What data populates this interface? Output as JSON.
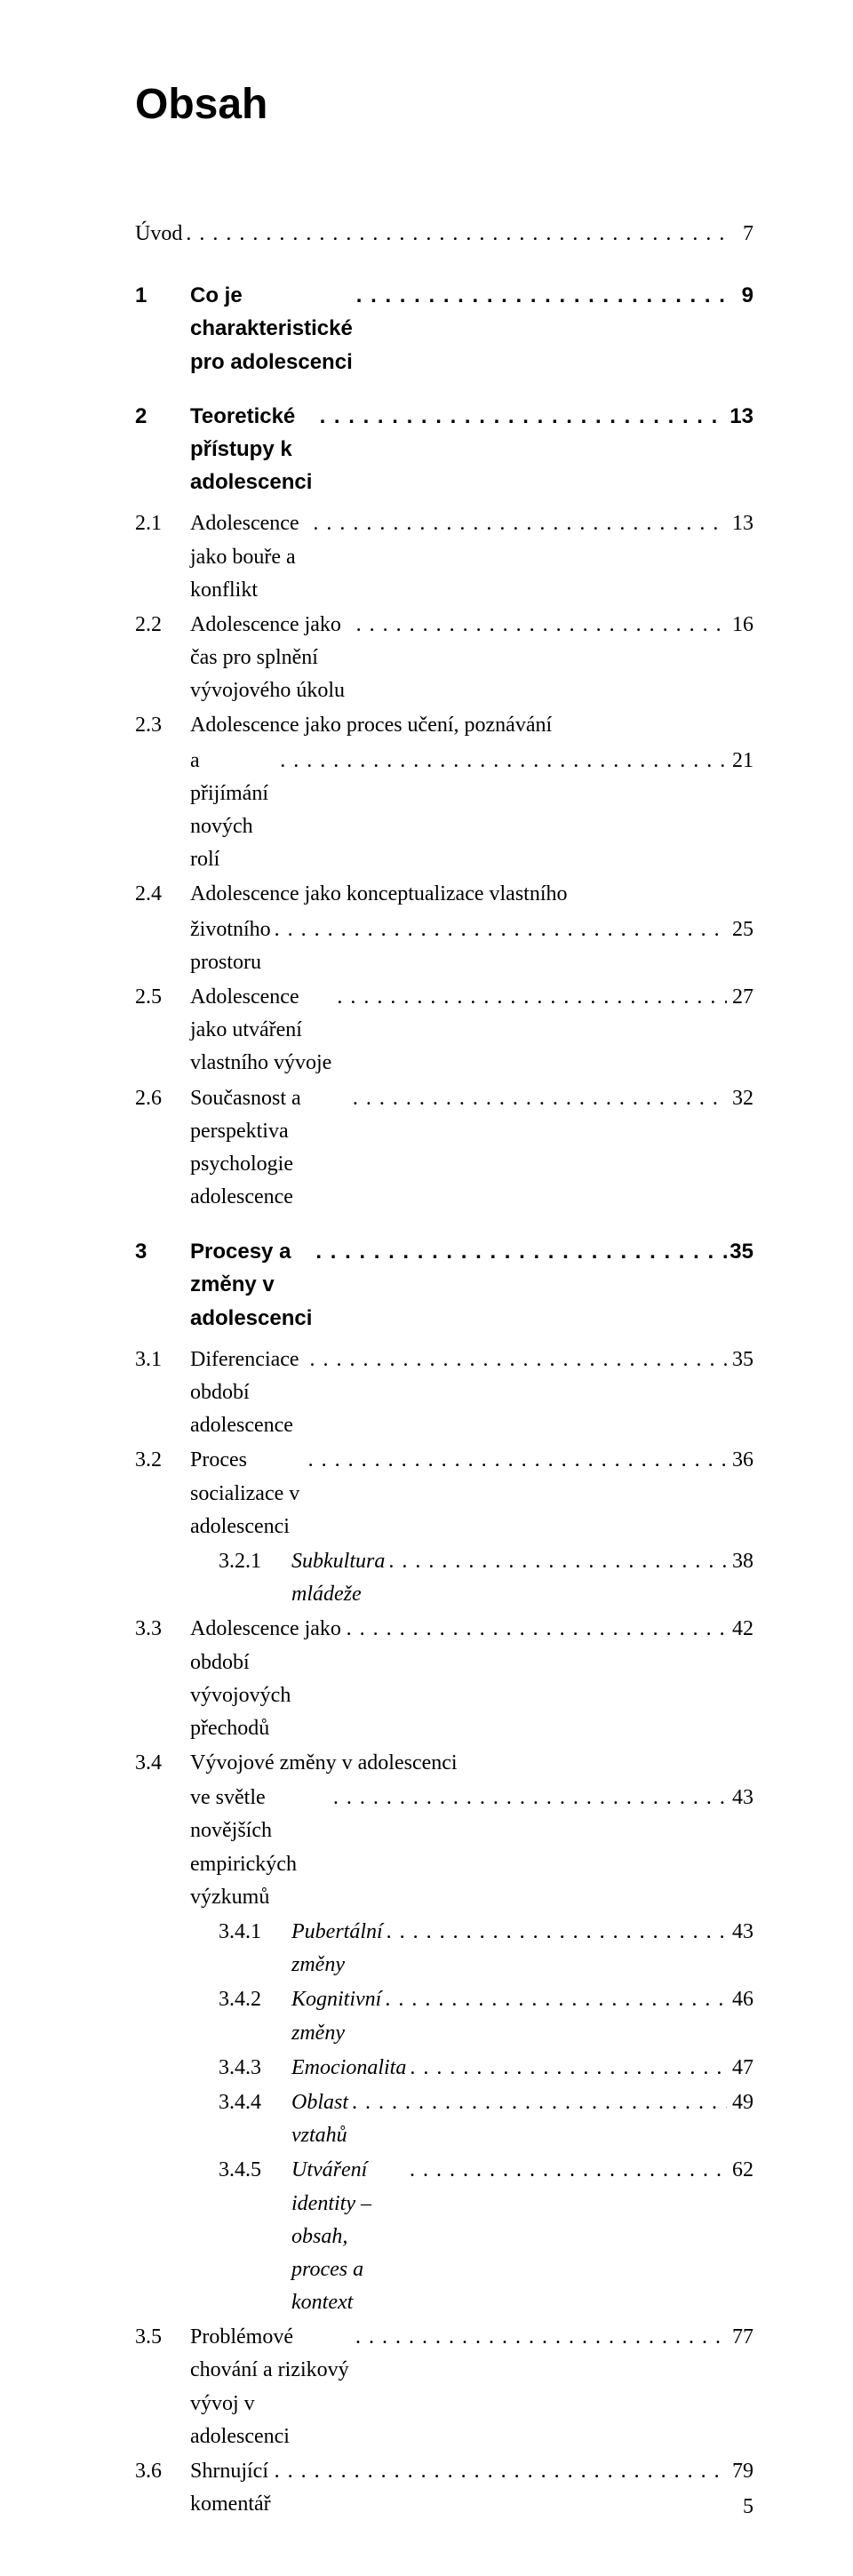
{
  "title": "Obsah",
  "footer_page": "5",
  "entries": [
    {
      "kind": "plain",
      "num": "",
      "label": "Úvod",
      "page": "7"
    },
    {
      "kind": "gap-l"
    },
    {
      "kind": "chapter",
      "num": "1",
      "label": "Co je charakteristické pro adolescenci",
      "page": "9"
    },
    {
      "kind": "gap-m"
    },
    {
      "kind": "chapter",
      "num": "2",
      "label": "Teoretické přístupy k adolescenci",
      "page": "13"
    },
    {
      "kind": "gap-s"
    },
    {
      "kind": "sub",
      "num": "2.1",
      "label": "Adolescence jako bouře a konflikt",
      "page": "13"
    },
    {
      "kind": "sub",
      "num": "2.2",
      "label": "Adolescence jako čas pro splnění vývojového úkolu",
      "page": "16"
    },
    {
      "kind": "sub-wrap",
      "num": "2.3",
      "label1": "Adolescence jako proces učení, poznávání",
      "label2": "a přijímání nových rolí",
      "page": "21"
    },
    {
      "kind": "sub-wrap",
      "num": "2.4",
      "label1": "Adolescence jako konceptualizace vlastního",
      "label2": "životního prostoru",
      "page": "25"
    },
    {
      "kind": "sub",
      "num": "2.5",
      "label": "Adolescence jako utváření vlastního vývoje",
      "page": "27"
    },
    {
      "kind": "sub",
      "num": "2.6",
      "label": "Současnost a perspektiva psychologie adolescence",
      "page": "32"
    },
    {
      "kind": "gap-m"
    },
    {
      "kind": "chapter",
      "num": "3",
      "label": "Procesy a změny v adolescenci",
      "page": "35"
    },
    {
      "kind": "gap-s"
    },
    {
      "kind": "sub",
      "num": "3.1",
      "label": "Diferenciace období adolescence",
      "page": "35"
    },
    {
      "kind": "sub",
      "num": "3.2",
      "label": "Proces socializace v adolescenci",
      "page": "36"
    },
    {
      "kind": "sub2",
      "num": "3.2.1",
      "label": "Subkultura mládeže",
      "italic": true,
      "page": "38"
    },
    {
      "kind": "sub",
      "num": "3.3",
      "label": "Adolescence jako období vývojových přechodů",
      "page": "42"
    },
    {
      "kind": "sub-wrap",
      "num": "3.4",
      "label1": "Vývojové změny v adolescenci",
      "label2": "ve světle novějších empirických výzkumů",
      "page": "43"
    },
    {
      "kind": "sub2",
      "num": "3.4.1",
      "label": "Pubertální změny",
      "italic": true,
      "page": "43"
    },
    {
      "kind": "sub2",
      "num": "3.4.2",
      "label": "Kognitivní změny",
      "italic": true,
      "page": "46"
    },
    {
      "kind": "sub2",
      "num": "3.4.3",
      "label": "Emocionalita",
      "italic": true,
      "page": "47"
    },
    {
      "kind": "sub2",
      "num": "3.4.4",
      "label": "Oblast vztahů",
      "italic": true,
      "page": "49"
    },
    {
      "kind": "sub2",
      "num": "3.4.5",
      "label": "Utváření identity – obsah, proces a kontext",
      "italic": true,
      "page": "62"
    },
    {
      "kind": "sub",
      "num": "3.5",
      "label": "Problémové chování a rizikový vývoj v adolescenci",
      "page": "77"
    },
    {
      "kind": "sub",
      "num": "3.6",
      "label": "Shrnující komentář",
      "page": "79"
    }
  ]
}
